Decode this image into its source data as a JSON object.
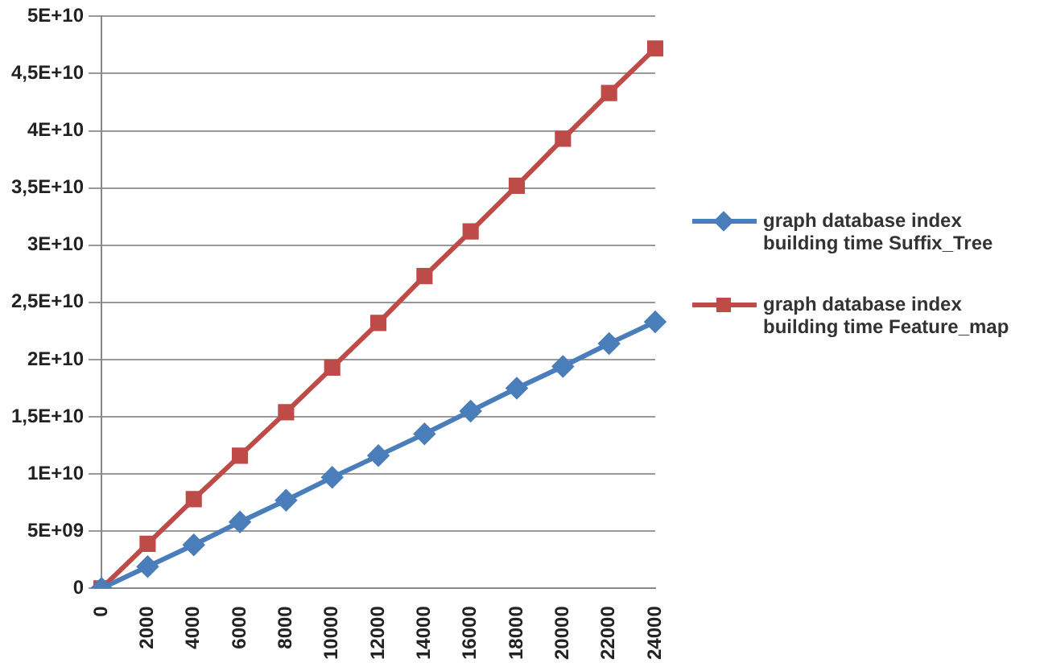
{
  "chart_data": {
    "type": "line",
    "categories": [
      "0",
      "2000",
      "4000",
      "6000",
      "8000",
      "10000",
      "12000",
      "14000",
      "16000",
      "18000",
      "20000",
      "22000",
      "24000"
    ],
    "series": [
      {
        "name": "graph database index building time Suffix_Tree",
        "color": "#4a7ebb",
        "marker": "diamond",
        "values": [
          0,
          1900000000.0,
          3800000000.0,
          5800000000.0,
          7700000000.0,
          9700000000.0,
          11600000000.0,
          13500000000.0,
          15500000000.0,
          17500000000.0,
          19400000000.0,
          21400000000.0,
          23300000000.0
        ]
      },
      {
        "name": "graph database index building time Feature_map",
        "color": "#be4b48",
        "marker": "square",
        "values": [
          0,
          3900000000.0,
          7800000000.0,
          11600000000.0,
          15400000000.0,
          19300000000.0,
          23200000000.0,
          27300000000.0,
          31200000000.0,
          35200000000.0,
          39300000000.0,
          43300000000.0,
          47200000000.0
        ]
      }
    ],
    "ylim": [
      0,
      50000000000.0
    ],
    "yticks": [
      0,
      {
        "value": 5000000000.0,
        "label": "5E+09"
      },
      {
        "value": 10000000000.0,
        "label": "1E+10"
      },
      {
        "value": 15000000000.0,
        "label": "1,5E+10"
      },
      {
        "value": 20000000000.0,
        "label": "2E+10"
      },
      {
        "value": 25000000000.0,
        "label": "2,5E+10"
      },
      {
        "value": 30000000000.0,
        "label": "3E+10"
      },
      {
        "value": 35000000000.0,
        "label": "3,5E+10"
      },
      {
        "value": 40000000000.0,
        "label": "4E+10"
      },
      {
        "value": 45000000000.0,
        "label": "4,5E+10"
      },
      {
        "value": 50000000000.0,
        "label": "5E+10"
      }
    ],
    "grid": "y",
    "legend": "right"
  }
}
